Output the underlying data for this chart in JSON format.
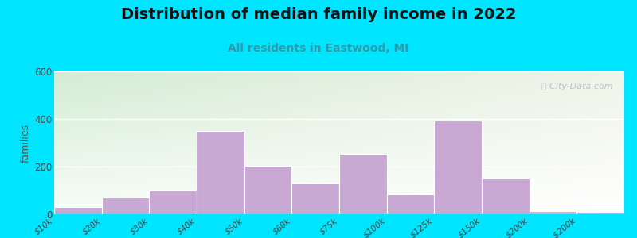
{
  "title": "Distribution of median family income in 2022",
  "subtitle": "All residents in Eastwood, MI",
  "ylabel": "families",
  "categories": [
    "$10k",
    "$20k",
    "$30k",
    "$40k",
    "$50k",
    "$60k",
    "$75k",
    "$100k",
    "$125k",
    "$150k",
    "$200k",
    "> $200k"
  ],
  "values": [
    30,
    70,
    100,
    350,
    205,
    130,
    255,
    85,
    395,
    150,
    15,
    10
  ],
  "bar_color": "#c9a8d4",
  "ylim": [
    0,
    600
  ],
  "yticks": [
    0,
    200,
    400,
    600
  ],
  "bg_color_topleft": "#d4ecd4",
  "bg_color_topright": "#e8f0e0",
  "bg_color_bottomleft": "#f5faf5",
  "bg_color_bottomright": "#ffffff",
  "outer_background": "#00e5ff",
  "title_fontsize": 14,
  "subtitle_fontsize": 10,
  "ylabel_fontsize": 9,
  "watermark_text": "ⓘ City-Data.com"
}
